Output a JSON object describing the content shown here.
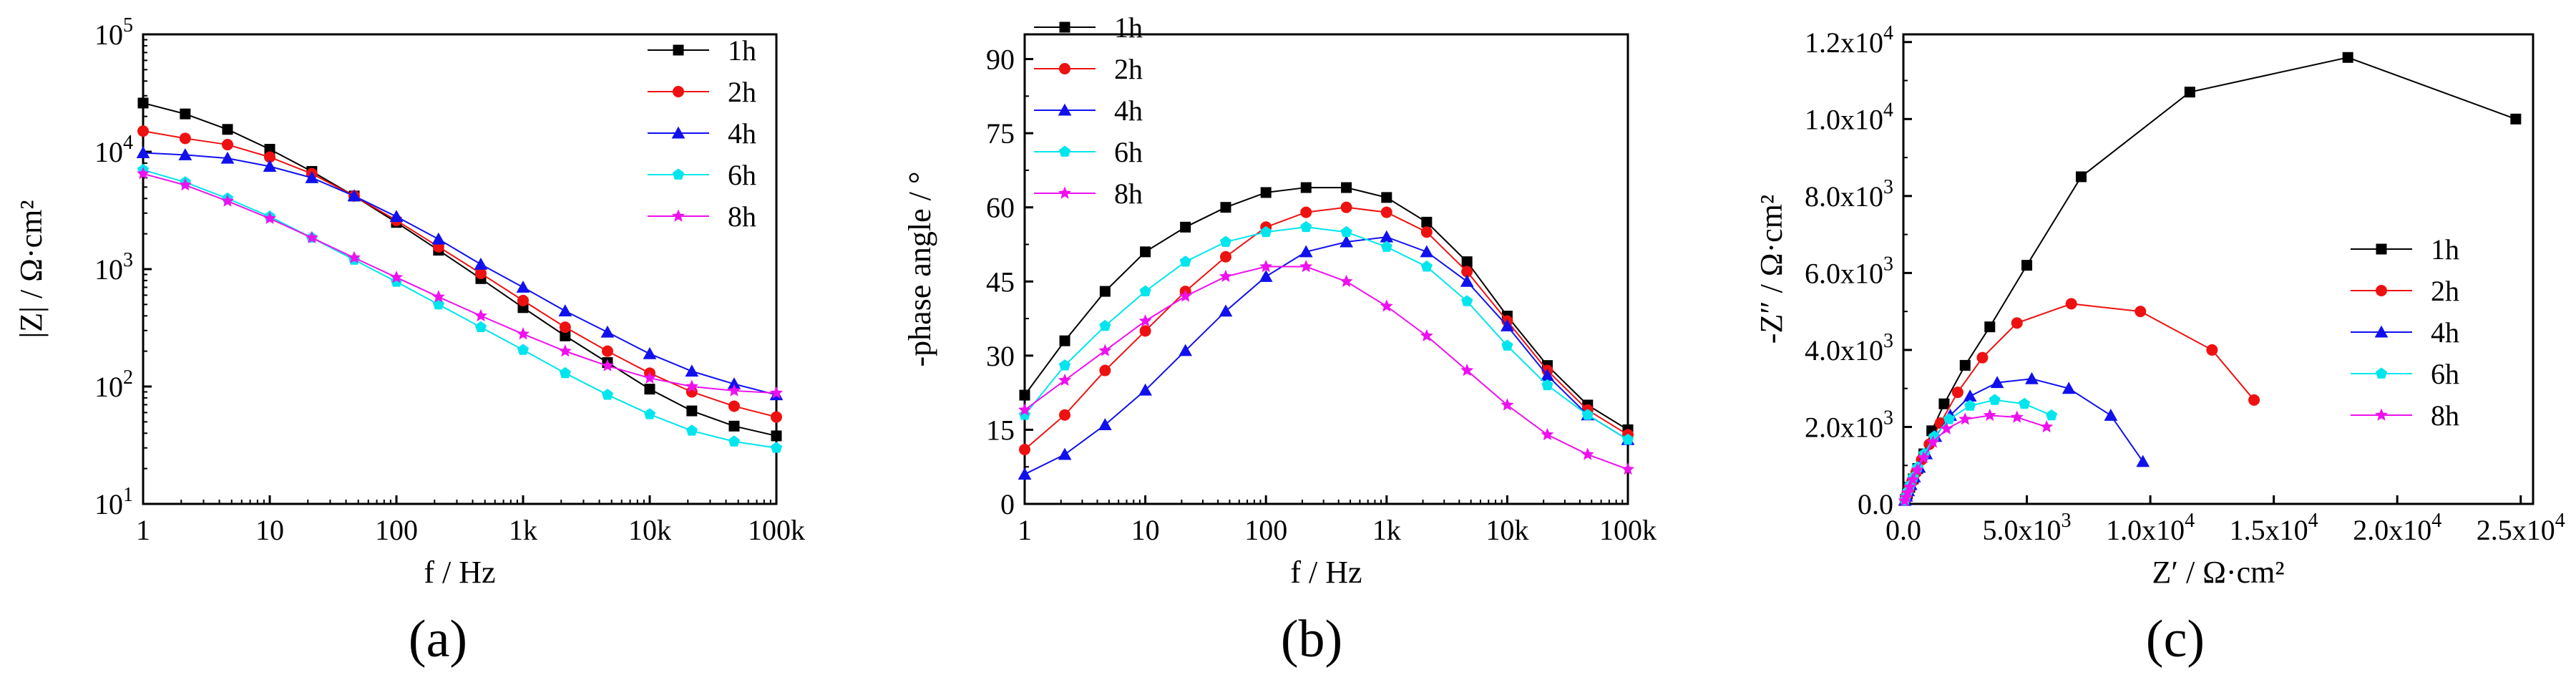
{
  "colors": {
    "1h": "#000000",
    "2h": "#ee1111",
    "4h": "#1111ee",
    "6h": "#00e5ee",
    "8h": "#ee11ee"
  },
  "chart_data": [
    {
      "type": "line",
      "panel_label": "(a)",
      "title": "",
      "xlabel": "f / Hz",
      "ylabel": "|Z| / Ω·cm²",
      "xscale": "log",
      "yscale": "log",
      "xlim": [
        1,
        100000
      ],
      "ylim": [
        10,
        100000
      ],
      "xticks": [
        1,
        10,
        100,
        1000,
        10000,
        100000
      ],
      "xtick_labels": [
        "1",
        "10",
        "100",
        "1k",
        "10k",
        "100k"
      ],
      "yticks": [
        10,
        100,
        1000,
        10000,
        100000
      ],
      "ytick_labels": [
        {
          "base": "10",
          "exp": "1"
        },
        {
          "base": "10",
          "exp": "2"
        },
        {
          "base": "10",
          "exp": "3"
        },
        {
          "base": "10",
          "exp": "4"
        },
        {
          "base": "10",
          "exp": "5"
        }
      ],
      "legend": {
        "location": "top-right",
        "entries": [
          "1h",
          "2h",
          "4h",
          "6h",
          "8h"
        ]
      },
      "x": [
        1,
        2.15,
        4.64,
        10,
        21.5,
        46.4,
        100,
        215,
        464,
        1000,
        2150,
        4640,
        10000,
        21500,
        46400,
        100000
      ],
      "series": [
        {
          "name": "1h",
          "marker": "square",
          "values": [
            26000,
            21000,
            15500,
            10500,
            6800,
            4200,
            2500,
            1450,
            830,
            470,
            270,
            160,
            95,
            62,
            46,
            38
          ]
        },
        {
          "name": "2h",
          "marker": "circle",
          "values": [
            15000,
            13000,
            11500,
            9000,
            6500,
            4200,
            2600,
            1550,
            920,
            540,
            320,
            200,
            130,
            90,
            68,
            55
          ]
        },
        {
          "name": "4h",
          "marker": "triangle",
          "values": [
            9800,
            9400,
            8800,
            7500,
            6000,
            4200,
            2800,
            1800,
            1100,
            700,
            440,
            290,
            190,
            135,
            105,
            85
          ]
        },
        {
          "name": "6h",
          "marker": "pentagon",
          "values": [
            7000,
            5500,
            4000,
            2800,
            1850,
            1200,
            780,
            500,
            320,
            205,
            130,
            85,
            58,
            42,
            34,
            30
          ]
        },
        {
          "name": "8h",
          "marker": "star",
          "values": [
            6500,
            5200,
            3800,
            2700,
            1850,
            1250,
            850,
            580,
            400,
            280,
            200,
            150,
            118,
            100,
            92,
            88
          ]
        }
      ]
    },
    {
      "type": "line",
      "panel_label": "(b)",
      "title": "",
      "xlabel": "f / Hz",
      "ylabel": "-phase angle / °",
      "xscale": "log",
      "yscale": "linear",
      "xlim": [
        1,
        100000
      ],
      "ylim": [
        0,
        95
      ],
      "xticks": [
        1,
        10,
        100,
        1000,
        10000,
        100000
      ],
      "xtick_labels": [
        "1",
        "10",
        "100",
        "1k",
        "10k",
        "100k"
      ],
      "yticks": [
        0,
        15,
        30,
        45,
        60,
        75,
        90
      ],
      "ytick_labels": [
        "0",
        "15",
        "30",
        "45",
        "60",
        "75",
        "90"
      ],
      "legend": {
        "location": "top-right",
        "entries": [
          "1h",
          "2h",
          "4h",
          "6h",
          "8h"
        ]
      },
      "x": [
        1,
        2.15,
        4.64,
        10,
        21.5,
        46.4,
        100,
        215,
        464,
        1000,
        2150,
        4640,
        10000,
        21500,
        46400,
        100000
      ],
      "series": [
        {
          "name": "1h",
          "marker": "square",
          "values": [
            22,
            33,
            43,
            51,
            56,
            60,
            63,
            64,
            64,
            62,
            57,
            49,
            38,
            28,
            20,
            15
          ]
        },
        {
          "name": "2h",
          "marker": "circle",
          "values": [
            11,
            18,
            27,
            35,
            43,
            50,
            56,
            59,
            60,
            59,
            55,
            47,
            37,
            27,
            19,
            14
          ]
        },
        {
          "name": "4h",
          "marker": "triangle",
          "values": [
            6,
            10,
            16,
            23,
            31,
            39,
            46,
            51,
            53,
            54,
            51,
            45,
            36,
            26,
            18,
            13
          ]
        },
        {
          "name": "6h",
          "marker": "pentagon",
          "values": [
            18,
            28,
            36,
            43,
            49,
            53,
            55,
            56,
            55,
            52,
            48,
            41,
            32,
            24,
            18,
            13
          ]
        },
        {
          "name": "8h",
          "marker": "star",
          "values": [
            19,
            25,
            31,
            37,
            42,
            46,
            48,
            48,
            45,
            40,
            34,
            27,
            20,
            14,
            10,
            7
          ]
        }
      ]
    },
    {
      "type": "scatter",
      "panel_label": "(c)",
      "title": "",
      "xlabel": "Z′ / Ω·cm²",
      "ylabel": "-Z″ / Ω·cm²",
      "xscale": "linear",
      "yscale": "linear",
      "xlim": [
        0,
        25500
      ],
      "ylim": [
        0,
        12200
      ],
      "xticks": [
        0,
        5000,
        10000,
        15000,
        20000,
        25000
      ],
      "xtick_labels": [
        {
          "base": "0.0",
          "exp": ""
        },
        {
          "base": "5.0x10",
          "exp": "3"
        },
        {
          "base": "1.0x10",
          "exp": "4"
        },
        {
          "base": "1.5x10",
          "exp": "4"
        },
        {
          "base": "2.0x10",
          "exp": "4"
        },
        {
          "base": "2.5x10",
          "exp": "4"
        }
      ],
      "yticks": [
        0,
        2000,
        4000,
        6000,
        8000,
        10000,
        12000
      ],
      "ytick_labels": [
        {
          "base": "0.0",
          "exp": ""
        },
        {
          "base": "2.0x10",
          "exp": "3"
        },
        {
          "base": "4.0x10",
          "exp": "3"
        },
        {
          "base": "6.0x10",
          "exp": "3"
        },
        {
          "base": "8.0x10",
          "exp": "3"
        },
        {
          "base": "1.0x10",
          "exp": "4"
        },
        {
          "base": "1.2x10",
          "exp": "4"
        }
      ],
      "legend": {
        "location": "center-right",
        "entries": [
          "1h",
          "2h",
          "4h",
          "6h",
          "8h"
        ]
      },
      "series": [
        {
          "name": "1h",
          "marker": "square",
          "points": [
            [
              80,
              120
            ],
            [
              160,
              260
            ],
            [
              260,
              430
            ],
            [
              400,
              650
            ],
            [
              580,
              920
            ],
            [
              830,
              1300
            ],
            [
              1150,
              1900
            ],
            [
              1650,
              2600
            ],
            [
              2500,
              3600
            ],
            [
              3500,
              4600
            ],
            [
              5000,
              6200
            ],
            [
              7200,
              8500
            ],
            [
              11600,
              10700
            ],
            [
              18000,
              11600
            ],
            [
              24800,
              10000
            ]
          ]
        },
        {
          "name": "2h",
          "marker": "circle",
          "points": [
            [
              70,
              110
            ],
            [
              140,
              240
            ],
            [
              230,
              390
            ],
            [
              350,
              580
            ],
            [
              520,
              820
            ],
            [
              740,
              1150
            ],
            [
              1050,
              1550
            ],
            [
              1500,
              2100
            ],
            [
              2200,
              2900
            ],
            [
              3200,
              3800
            ],
            [
              4600,
              4700
            ],
            [
              6800,
              5200
            ],
            [
              9600,
              5000
            ],
            [
              12500,
              4000
            ],
            [
              14200,
              2700
            ]
          ]
        },
        {
          "name": "4h",
          "marker": "triangle",
          "points": [
            [
              60,
              90
            ],
            [
              120,
              200
            ],
            [
              200,
              340
            ],
            [
              300,
              500
            ],
            [
              440,
              700
            ],
            [
              640,
              950
            ],
            [
              920,
              1300
            ],
            [
              1300,
              1750
            ],
            [
              1900,
              2300
            ],
            [
              2700,
              2800
            ],
            [
              3800,
              3150
            ],
            [
              5200,
              3250
            ],
            [
              6700,
              3000
            ],
            [
              8400,
              2300
            ],
            [
              9700,
              1100
            ]
          ]
        },
        {
          "name": "6h",
          "marker": "pentagon",
          "points": [
            [
              60,
              90
            ],
            [
              110,
              190
            ],
            [
              180,
              320
            ],
            [
              270,
              480
            ],
            [
              400,
              690
            ],
            [
              580,
              950
            ],
            [
              850,
              1300
            ],
            [
              1250,
              1750
            ],
            [
              1850,
              2200
            ],
            [
              2700,
              2550
            ],
            [
              3700,
              2700
            ],
            [
              4900,
              2600
            ],
            [
              6000,
              2300
            ]
          ]
        },
        {
          "name": "8h",
          "marker": "star",
          "points": [
            [
              50,
              80
            ],
            [
              100,
              170
            ],
            [
              170,
              290
            ],
            [
              260,
              440
            ],
            [
              380,
              630
            ],
            [
              560,
              880
            ],
            [
              820,
              1200
            ],
            [
              1200,
              1600
            ],
            [
              1750,
              1950
            ],
            [
              2500,
              2200
            ],
            [
              3500,
              2300
            ],
            [
              4600,
              2250
            ],
            [
              5800,
              2000
            ]
          ]
        }
      ]
    }
  ]
}
